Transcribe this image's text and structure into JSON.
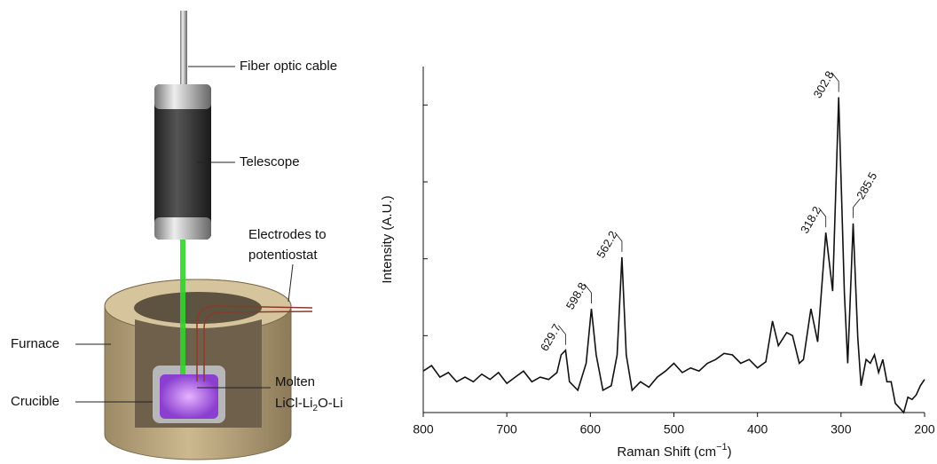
{
  "diagram": {
    "labels": {
      "fiber": "Fiber optic cable",
      "telescope": "Telescope",
      "electrodes": [
        "Electrodes to",
        "potentiostat"
      ],
      "furnace": "Furnace",
      "crucible": "Crucible",
      "molten": "Molten",
      "salt": [
        "LiCl-Li",
        "2",
        "O-Li"
      ]
    }
  },
  "chart_data": {
    "type": "line",
    "x_label": {
      "text": "Raman Shift (cm",
      "sup": "−1",
      "end": ")"
    },
    "y_label": "Intensity (A.U.)",
    "xlim": [
      800,
      200
    ],
    "xticks": [
      800,
      700,
      600,
      500,
      400,
      300,
      200
    ],
    "ylim": [
      0,
      4.5
    ],
    "yticks": [
      1,
      2,
      3,
      4
    ],
    "color": "#111111",
    "x": [
      800,
      790,
      780,
      770,
      760,
      750,
      740,
      730,
      720,
      710,
      700,
      690,
      680,
      670,
      660,
      650,
      640,
      635,
      629.7,
      625,
      615,
      605,
      598.8,
      593,
      585,
      575,
      568,
      562.2,
      557,
      550,
      540,
      530,
      520,
      510,
      500,
      490,
      480,
      470,
      460,
      450,
      440,
      430,
      420,
      410,
      400,
      390,
      382,
      375,
      365,
      358,
      350,
      345,
      336,
      328,
      318.2,
      310,
      302.8,
      296,
      292,
      285.5,
      280,
      276,
      270,
      265,
      260,
      255,
      250,
      245,
      240,
      235,
      230,
      225,
      220,
      215,
      210,
      205,
      200
    ],
    "values": [
      0.54,
      0.61,
      0.46,
      0.52,
      0.4,
      0.46,
      0.4,
      0.5,
      0.43,
      0.52,
      0.38,
      0.46,
      0.54,
      0.4,
      0.46,
      0.43,
      0.52,
      0.75,
      0.81,
      0.4,
      0.29,
      0.64,
      1.35,
      0.75,
      0.29,
      0.35,
      0.75,
      2.02,
      0.75,
      0.29,
      0.4,
      0.33,
      0.46,
      0.54,
      0.64,
      0.52,
      0.58,
      0.54,
      0.64,
      0.69,
      0.77,
      0.75,
      0.64,
      0.69,
      0.58,
      0.66,
      1.19,
      0.87,
      1.04,
      1.0,
      0.64,
      0.69,
      1.35,
      0.92,
      2.34,
      1.58,
      4.1,
      1.56,
      0.64,
      2.46,
      0.98,
      0.35,
      0.69,
      0.64,
      0.75,
      0.52,
      0.69,
      0.4,
      0.4,
      0.12,
      0.06,
      0.0,
      0.2,
      0.17,
      0.23,
      0.35,
      0.43
    ],
    "peaks": [
      629.7,
      598.8,
      562.2,
      318.2,
      302.8,
      285.5
    ]
  }
}
